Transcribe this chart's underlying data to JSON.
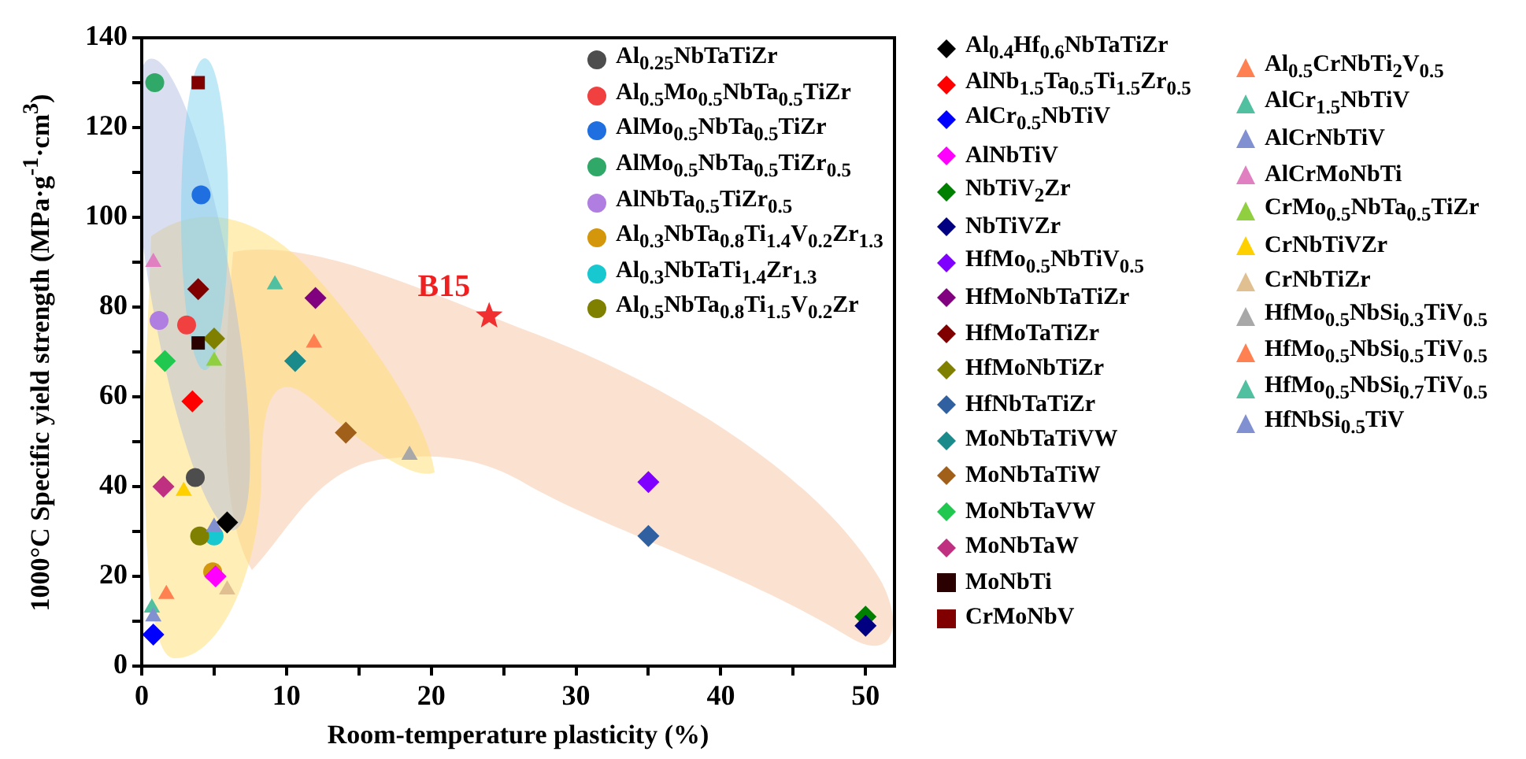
{
  "chart_data": {
    "type": "scatter",
    "xlabel": "Room-temperature plasticity (%)",
    "ylabel": "1000°C Specific yield strength (MPa·g$^{-1}$·cm$^{3}$)",
    "xlim": [
      0,
      52
    ],
    "ylim": [
      0,
      140
    ],
    "xticks": [
      0,
      {
        "value": 5,
        "label": null
      },
      10,
      {
        "value": 15,
        "label": null
      },
      20,
      {
        "value": 25,
        "label": null
      },
      30,
      {
        "value": 35,
        "label": null
      },
      40,
      {
        "value": 45,
        "label": null
      },
      50
    ],
    "yticks": [
      0,
      {
        "value": 10,
        "label": null
      },
      20,
      {
        "value": 30,
        "label": null
      },
      40,
      {
        "value": 50,
        "label": null
      },
      60,
      {
        "value": 70,
        "label": null
      },
      80,
      {
        "value": 90,
        "label": null
      },
      100,
      {
        "value": 110,
        "label": null
      },
      120,
      {
        "value": 130,
        "label": null
      },
      140
    ],
    "legend": "right",
    "grid": false,
    "annotations": [
      {
        "text": "B15",
        "x": 24,
        "y": 78
      }
    ],
    "series": [
      {
        "name": "Al$_{0.25}$NbTaTiZr",
        "color": "#4d4d4d",
        "marker": "circle",
        "x": [
          3.7
        ],
        "values": [
          42
        ]
      },
      {
        "name": "Al$_{0.5}$Mo$_{0.5}$NbTa$_{0.5}$TiZr",
        "color": "#f04040",
        "marker": "circle",
        "x": [
          3.1
        ],
        "values": [
          76
        ]
      },
      {
        "name": "AlMo$_{0.5}$NbTa$_{0.5}$TiZr",
        "color": "#1f6fe0",
        "marker": "circle",
        "x": [
          4.1
        ],
        "values": [
          105
        ]
      },
      {
        "name": "AlMo$_{0.5}$NbTa$_{0.5}$TiZr$_{0.5}$",
        "color": "#30a868",
        "marker": "circle",
        "x": [
          0.9
        ],
        "values": [
          130
        ]
      },
      {
        "name": "AlNbTa$_{0.5}$TiZr$_{0.5}$",
        "color": "#b07ee0",
        "marker": "circle",
        "x": [
          1.2
        ],
        "values": [
          77
        ]
      },
      {
        "name": "Al$_{0.3}$NbTa$_{0.8}$Ti$_{1.4}$V$_{0.2}$Zr$_{1.3}$",
        "color": "#d4960a",
        "marker": "circle",
        "x": [
          4.9
        ],
        "values": [
          21
        ]
      },
      {
        "name": "Al$_{0.3}$NbTaTi$_{1.4}$Zr$_{1.3}$",
        "color": "#18c8d0",
        "marker": "circle",
        "x": [
          5.0
        ],
        "values": [
          29
        ]
      },
      {
        "name": "Al$_{0.5}$NbTa$_{0.8}$Ti$_{1.5}$V$_{0.2}$Zr",
        "color": "#808000",
        "marker": "circle",
        "x": [
          4.0
        ],
        "values": [
          29
        ]
      },
      {
        "name": "Al$_{0.4}$Hf$_{0.6}$NbTaTiZr",
        "color": "#000000",
        "marker": "diamond",
        "x": [
          5.9
        ],
        "values": [
          32
        ]
      },
      {
        "name": "AlNb$_{1.5}$Ta$_{0.5}$Ti$_{1.5}$Zr$_{0.5}$",
        "color": "#ff0000",
        "marker": "diamond",
        "x": [
          3.5
        ],
        "values": [
          59
        ]
      },
      {
        "name": "AlCr$_{0.5}$NbTiV",
        "color": "#0000ff",
        "marker": "diamond",
        "x": [
          0.8
        ],
        "values": [
          7
        ]
      },
      {
        "name": "AlNbTiV",
        "color": "#ff00ff",
        "marker": "diamond",
        "x": [
          5.1
        ],
        "values": [
          20
        ]
      },
      {
        "name": "NbTiV$_{2}$Zr",
        "color": "#008000",
        "marker": "diamond",
        "x": [
          50
        ],
        "values": [
          11
        ]
      },
      {
        "name": "NbTiVZr",
        "color": "#000080",
        "marker": "diamond",
        "x": [
          50
        ],
        "values": [
          9
        ]
      },
      {
        "name": "HfMo$_{0.5}$NbTiV$_{0.5}$",
        "color": "#8000ff",
        "marker": "diamond",
        "x": [
          35
        ],
        "values": [
          41
        ]
      },
      {
        "name": "HfMoNbTaTiZr",
        "color": "#800080",
        "marker": "diamond",
        "x": [
          12
        ],
        "values": [
          82
        ]
      },
      {
        "name": "HfMoTaTiZr",
        "color": "#800000",
        "marker": "diamond",
        "x": [
          3.9
        ],
        "values": [
          84
        ]
      },
      {
        "name": "HfMoNbTiZr",
        "color": "#808000",
        "marker": "diamond",
        "x": [
          5.0
        ],
        "values": [
          73
        ]
      },
      {
        "name": "HfNbTaTiZr",
        "color": "#3060a0",
        "marker": "diamond",
        "x": [
          35
        ],
        "values": [
          29
        ]
      },
      {
        "name": "MoNbTaTiVW",
        "color": "#1a8a8a",
        "marker": "diamond",
        "x": [
          10.6
        ],
        "values": [
          68
        ]
      },
      {
        "name": "MoNbTaTiW",
        "color": "#a0601a",
        "marker": "diamond",
        "x": [
          14.1
        ],
        "values": [
          52
        ]
      },
      {
        "name": "MoNbTaVW",
        "color": "#20c850",
        "marker": "diamond",
        "x": [
          1.6
        ],
        "values": [
          68
        ]
      },
      {
        "name": "MoNbTaW",
        "color": "#c03080",
        "marker": "diamond",
        "x": [
          1.5
        ],
        "values": [
          40
        ]
      },
      {
        "name": "MoNbTi",
        "color": "#2a0000",
        "marker": "square",
        "x": [
          3.9
        ],
        "values": [
          72
        ]
      },
      {
        "name": "CrMoNbV",
        "color": "#800000",
        "marker": "square",
        "x": [
          3.9
        ],
        "values": [
          130
        ]
      },
      {
        "name": "Al$_{0.5}$CrNbTi$_{2}$V$_{0.5}$",
        "color": "#ff8050",
        "marker": "triangle",
        "x": [
          1.7
        ],
        "values": [
          16
        ]
      },
      {
        "name": "AlCr$_{1.5}$NbTiV",
        "color": "#50c0a0",
        "marker": "triangle",
        "x": [
          0.7
        ],
        "values": [
          13
        ]
      },
      {
        "name": "AlCrNbTiV",
        "color": "#8090d0",
        "marker": "triangle",
        "x": [
          0.8
        ],
        "values": [
          11
        ]
      },
      {
        "name": "AlCrMoNbTi",
        "color": "#e080c0",
        "marker": "triangle",
        "x": [
          0.8
        ],
        "values": [
          90
        ]
      },
      {
        "name": "CrMo$_{0.5}$NbTa$_{0.5}$TiZr",
        "color": "#90d040",
        "marker": "triangle",
        "x": [
          5.0
        ],
        "values": [
          68
        ]
      },
      {
        "name": "CrNbTiVZr",
        "color": "#ffd000",
        "marker": "triangle",
        "x": [
          2.9
        ],
        "values": [
          39
        ]
      },
      {
        "name": "CrNbTiZr",
        "color": "#e0c090",
        "marker": "triangle",
        "x": [
          5.9
        ],
        "values": [
          17
        ]
      },
      {
        "name": "HfMo$_{0.5}$NbSi$_{0.3}$TiV$_{0.5}$",
        "color": "#a8a8a8",
        "marker": "triangle",
        "x": [
          18.5
        ],
        "values": [
          47
        ]
      },
      {
        "name": "HfMo$_{0.5}$NbSi$_{0.5}$TiV$_{0.5}$",
        "color": "#ff8050",
        "marker": "triangle",
        "x": [
          11.9
        ],
        "values": [
          72
        ]
      },
      {
        "name": "HfMo$_{0.5}$NbSi$_{0.7}$TiV$_{0.5}$",
        "color": "#50c0a0",
        "marker": "triangle",
        "x": [
          9.2
        ],
        "values": [
          85
        ]
      },
      {
        "name": "HfNbSi$_{0.5}$TiV",
        "color": "#8090d0",
        "marker": "triangle",
        "x": [
          5.0
        ],
        "values": [
          31
        ]
      },
      {
        "color": "#f03030",
        "marker": "star",
        "x": [
          24
        ],
        "values": [
          78
        ]
      }
    ]
  }
}
